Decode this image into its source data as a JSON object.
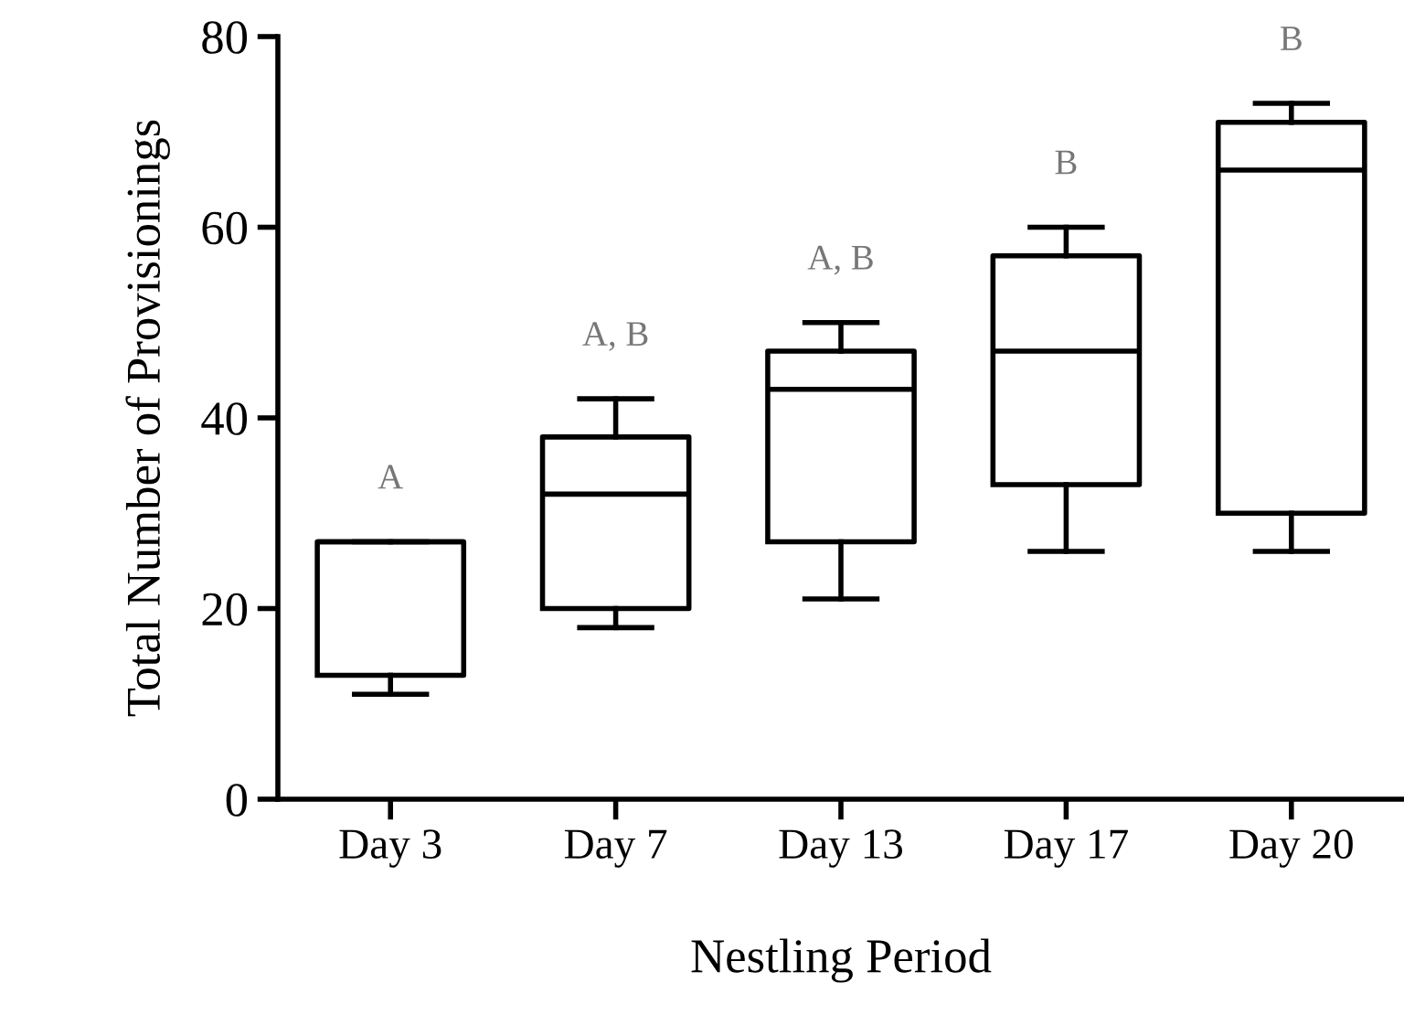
{
  "chart_data": {
    "type": "box",
    "xlabel": "Nestling Period",
    "ylabel": "Total Number of Provisionings",
    "categories": [
      "Day 3",
      "Day 7",
      "Day 13",
      "Day 17",
      "Day 20"
    ],
    "boxes": [
      {
        "low": 11,
        "q1": 13,
        "median": 27,
        "q3": 27,
        "high": 27
      },
      {
        "low": 18,
        "q1": 20,
        "median": 32,
        "q3": 38,
        "high": 42
      },
      {
        "low": 21,
        "q1": 27,
        "median": 43,
        "q3": 47,
        "high": 50
      },
      {
        "low": 26,
        "q1": 33,
        "median": 47,
        "q3": 57,
        "high": 60
      },
      {
        "low": 26,
        "q1": 30,
        "median": 66,
        "q3": 71,
        "high": 73
      }
    ],
    "color": "#000000",
    "ylim": [
      0,
      80
    ],
    "yticks": [
      0,
      20,
      40,
      60,
      80
    ],
    "grid": false,
    "annotations": [
      "A",
      "A, B",
      "A, B",
      "B",
      "B"
    ]
  }
}
